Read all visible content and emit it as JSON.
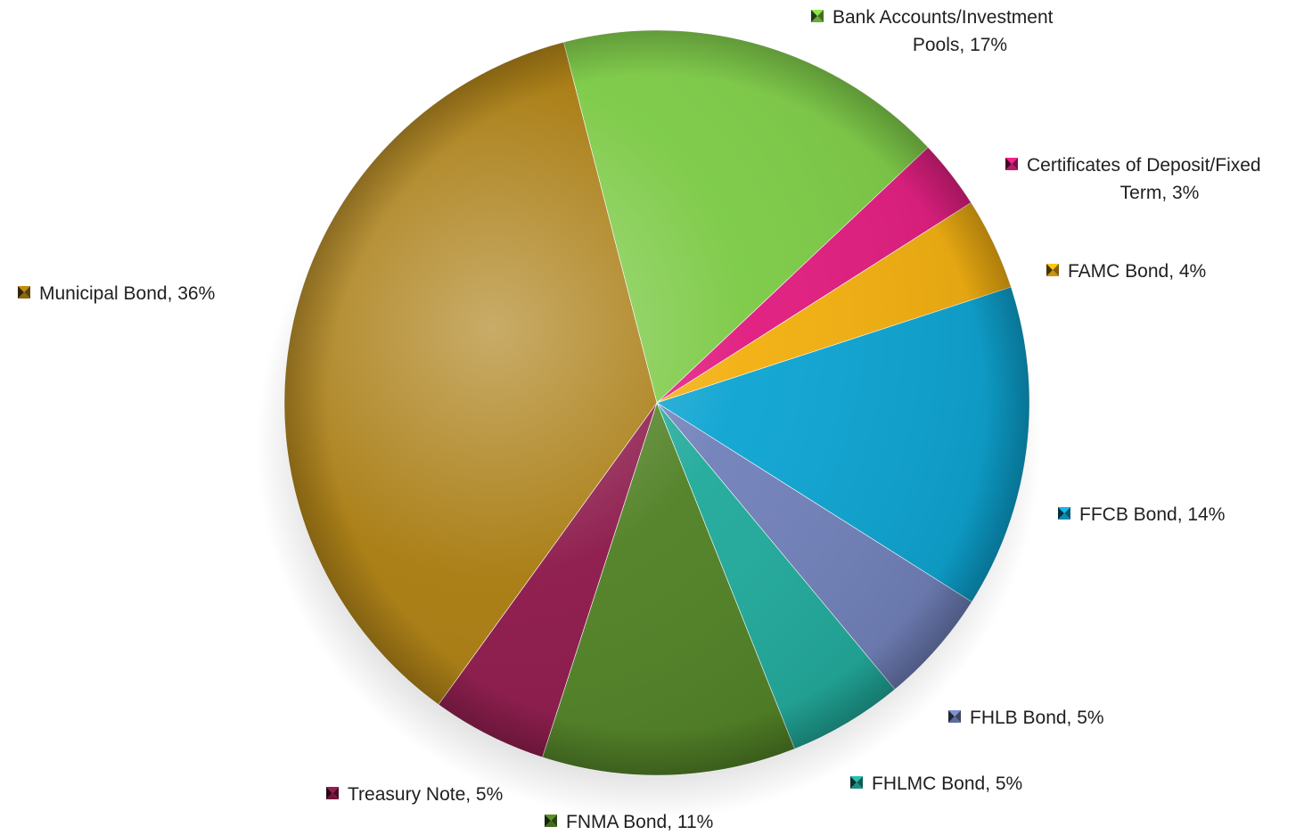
{
  "chart_data": {
    "type": "pie",
    "title": "",
    "slices": [
      {
        "name": "Bank Accounts/Investment Pools",
        "value": 17,
        "label_lines": [
          "Bank Accounts/Investment",
          "Pools, 17%"
        ],
        "color": "#7AC943"
      },
      {
        "name": "Certificates of Deposit/Fixed Term",
        "value": 3,
        "label_lines": [
          "Certificates of Deposit/Fixed",
          "Term, 3%"
        ],
        "color": "#E0197D"
      },
      {
        "name": "FAMC Bond",
        "value": 4,
        "label_lines": [
          "FAMC Bond, 4%"
        ],
        "color": "#F2AE0C"
      },
      {
        "name": "FFCB Bond",
        "value": 14,
        "label_lines": [
          "FFCB Bond, 14%"
        ],
        "color": "#0AA3D1"
      },
      {
        "name": "FHLB Bond",
        "value": 5,
        "label_lines": [
          "FHLB Bond, 5%"
        ],
        "color": "#6F7FB9"
      },
      {
        "name": "FHLMC Bond",
        "value": 5,
        "label_lines": [
          "FHLMC Bond, 5%"
        ],
        "color": "#1EA99A"
      },
      {
        "name": "FNMA Bond",
        "value": 11,
        "label_lines": [
          "FNMA Bond, 11%"
        ],
        "color": "#4E7F22"
      },
      {
        "name": "Treasury Note",
        "value": 5,
        "label_lines": [
          "Treasury Note, 5%"
        ],
        "color": "#8A1547"
      },
      {
        "name": "Municipal Bond",
        "value": 36,
        "label_lines": [
          "Municipal Bond, 36%"
        ],
        "color": "#A7790C"
      }
    ],
    "legend": "none",
    "grid": false
  }
}
